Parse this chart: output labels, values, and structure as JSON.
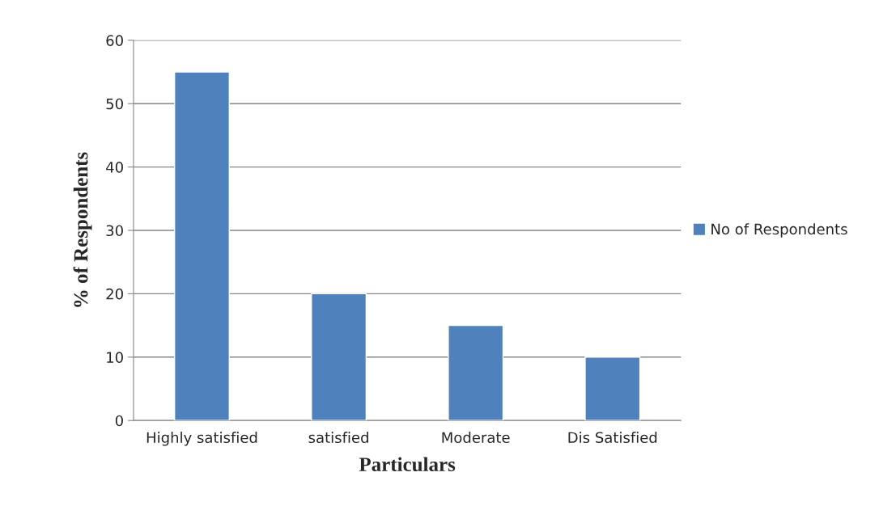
{
  "chart_data": {
    "type": "bar",
    "xlabel": "Particulars",
    "ylabel": "% of Respondents",
    "categories": [
      "Highly satisfied",
      "satisfied",
      "Moderate",
      "Dis Satisfied"
    ],
    "series": [
      {
        "name": "No of Respondents",
        "color": "#4f81bd",
        "values": [
          55,
          20,
          15,
          10
        ]
      }
    ],
    "ylim": [
      0,
      60
    ],
    "yticks": [
      0,
      10,
      20,
      30,
      40,
      50,
      60
    ],
    "grid": "y",
    "legend": "right"
  }
}
